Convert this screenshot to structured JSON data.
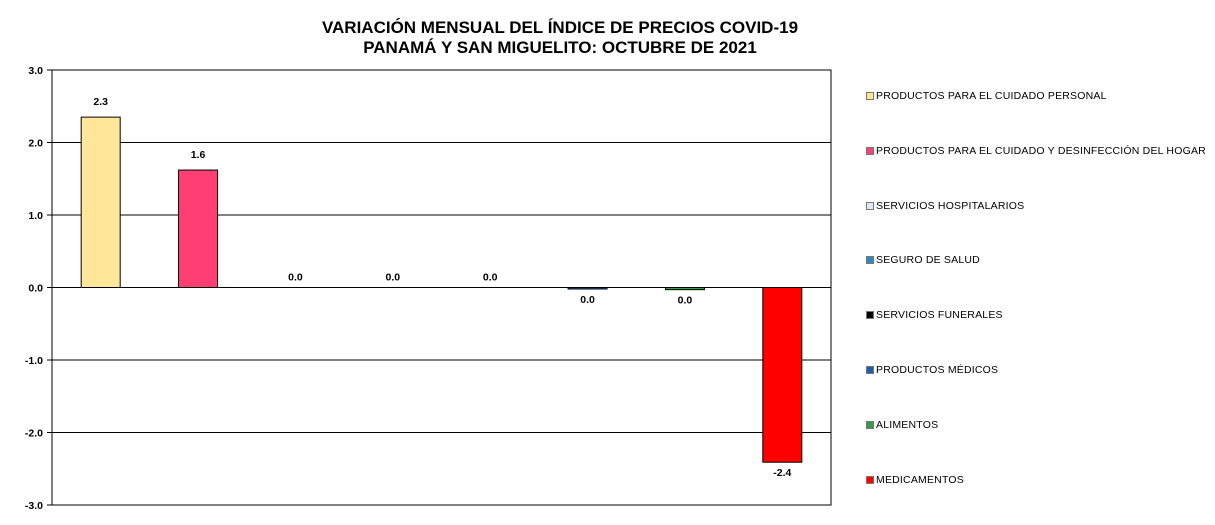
{
  "title": [
    "VARIACIÓN MENSUAL DEL ÍNDICE DE PRECIOS COVID-19",
    "PANAMÁ Y SAN MIGUELITO: OCTUBRE DE 2021"
  ],
  "chart_data": {
    "type": "bar",
    "title": "VARIACIÓN MENSUAL DEL ÍNDICE DE PRECIOS COVID-19 PANAMÁ Y SAN MIGUELITO: OCTUBRE DE 2021",
    "ylim": [
      -3.0,
      3.0
    ],
    "yticks": [
      "3.0",
      "2.0",
      "1.0",
      "0.0",
      "-1.0",
      "-2.0",
      "-3.0"
    ],
    "ytick_values": [
      3,
      2,
      1,
      0,
      -1,
      -2,
      -3
    ],
    "grid": true,
    "legend_position": "right",
    "categories": [
      "PRODUCTOS PARA EL CUIDADO PERSONAL",
      "PRODUCTOS PARA EL CUIDADO Y DESINFECCIÓN DEL HOGAR",
      "SERVICIOS HOSPITALARIOS",
      "SEGURO DE SALUD",
      "SERVICIOS FUNERALES",
      "PRODUCTOS MÉDICOS",
      "ALIMENTOS",
      "MEDICAMENTOS"
    ],
    "values": [
      2.35,
      1.62,
      0.0,
      0.0,
      0.0,
      -0.01,
      -0.03,
      -2.41
    ],
    "data_labels": [
      "2.3",
      "1.6",
      "0.0",
      "0.0",
      "0.0",
      "0.0",
      "0.0",
      "-2.4"
    ],
    "colors": [
      "#ffe699",
      "#ff3f73",
      "#deebf7",
      "#2e8bc0",
      "#000000",
      "#1f5fa8",
      "#2e9e48",
      "#ff0000"
    ]
  }
}
